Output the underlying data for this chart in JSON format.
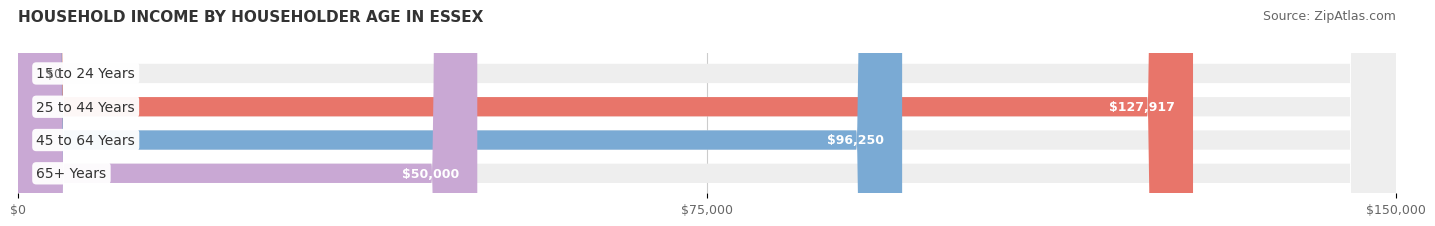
{
  "title": "HOUSEHOLD INCOME BY HOUSEHOLDER AGE IN ESSEX",
  "source": "Source: ZipAtlas.com",
  "categories": [
    "15 to 24 Years",
    "25 to 44 Years",
    "45 to 64 Years",
    "65+ Years"
  ],
  "values": [
    0,
    127917,
    96250,
    50000
  ],
  "bar_colors": [
    "#f0c89a",
    "#e8756a",
    "#7aaad4",
    "#c9a8d4"
  ],
  "background_bar_color": "#eeeeee",
  "xlim": [
    0,
    150000
  ],
  "xticks": [
    0,
    75000,
    150000
  ],
  "xtick_labels": [
    "$0",
    "$75,000",
    "$150,000"
  ],
  "value_labels": [
    "$0",
    "$127,917",
    "$96,250",
    "$50,000"
  ],
  "bar_height": 0.58,
  "bg_color": "#ffffff",
  "title_fontsize": 11,
  "source_fontsize": 9,
  "label_fontsize": 10,
  "tick_fontsize": 9,
  "value_fontsize": 9
}
